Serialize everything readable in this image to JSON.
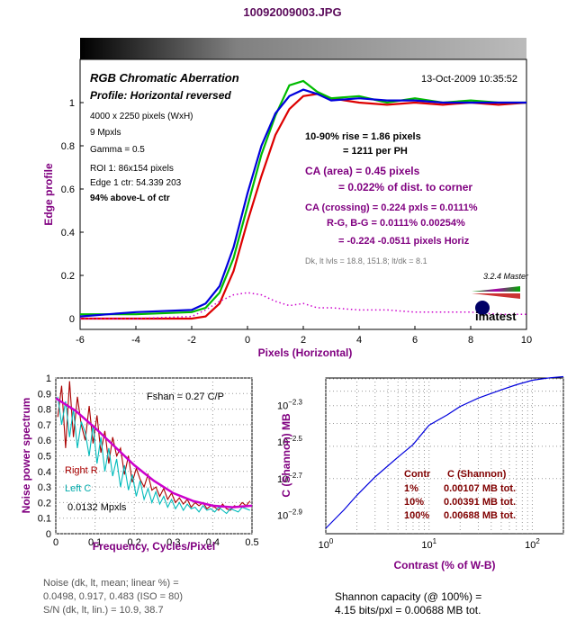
{
  "file_title": "10092009003.JPG",
  "colors": {
    "red": "#dd0000",
    "green": "#00bb00",
    "blue": "#0000dd",
    "magenta": "#cc00cc",
    "purple_text": "#800080",
    "dark_red_text": "#800000",
    "cyan": "#00bbbb",
    "dark_red_noise": "#aa0000",
    "fit": "#cc00cc"
  },
  "main": {
    "title": "RGB Chromatic Aberration",
    "subtitle": "Profile: Horizontal reversed",
    "timestamp": "13-Oct-2009 10:35:52",
    "info": {
      "pixels": "4000 x 2250 pixels (WxH)",
      "mpxls": "9 Mpxls",
      "gamma": "Gamma = 0.5",
      "roi": "ROI 1: 86x154 pixels",
      "edge_ctr": "Edge 1 ctr: 54.339  203",
      "above": "94% above-L of ctr"
    },
    "stats": {
      "rise": "10-90% rise = 1.86 pixels",
      "per_ph": "= 1211 per PH",
      "ca_area": "CA (area) = 0.45 pixels",
      "ca_area_pct": "= 0.022% of dist. to corner",
      "ca_crossing": "CA (crossing) = 0.224 pxls = 0.0111%",
      "rg_bg": "R-G, B-G = 0.0111%  0.00254%",
      "horiz": "= -0.224  -0.0511 pixels Horiz",
      "dk": "Dk, lt lvls = 18.8, 151.8;  lt/dk = 8.1"
    },
    "logo": {
      "version": "3.2.4  Master",
      "brand": "imatest"
    }
  },
  "noise": {
    "fshan": "Fshan = 0.27 C/P",
    "right_label": "Right R",
    "left_label": "Left  C",
    "mpxls": "0.0132 Mpxls",
    "footer": [
      "Noise (dk, lt, mean; linear %) =",
      "0.0498,  0.917,  0.483  (ISO =  80)",
      "S/N (dk, lt, lin.) = 10.9,  38.7"
    ]
  },
  "shannon": {
    "table_header": [
      "Contr",
      "C (Shannon)"
    ],
    "table_rows": [
      [
        "1%",
        "0.00107 MB tot."
      ],
      [
        "10%",
        "0.00391 MB tot."
      ],
      [
        "100%",
        "0.00688 MB tot."
      ]
    ],
    "footer": [
      "Shannon capacity (@ 100%) =",
      "4.15 bits/pxl = 0.00688 MB tot."
    ]
  },
  "chart_data": [
    {
      "type": "line",
      "xlabel": "Pixels (Horizontal)",
      "ylabel": "Edge profile",
      "xlim": [
        -6,
        10
      ],
      "ylim": [
        -0.05,
        1.2
      ],
      "xticks": [
        -6,
        -4,
        -2,
        0,
        2,
        4,
        6,
        8,
        10
      ],
      "yticks": [
        0,
        0.2,
        0.4,
        0.6,
        0.8,
        1
      ],
      "ytick_labels": [
        "0",
        "0.2",
        "0.4",
        "0.6",
        "0.8",
        "1"
      ],
      "grid": false,
      "series": [
        {
          "key": "red",
          "x": [
            -6,
            -4,
            -2,
            -1.5,
            -1,
            -0.5,
            0,
            0.5,
            1,
            1.5,
            2,
            2.5,
            3,
            4,
            5,
            6,
            7,
            8,
            9,
            10
          ],
          "values": [
            0,
            0,
            0,
            0.01,
            0.07,
            0.22,
            0.45,
            0.66,
            0.85,
            0.97,
            1.03,
            1.04,
            1.02,
            1.0,
            0.99,
            1.0,
            0.99,
            1.0,
            0.99,
            1.0
          ]
        },
        {
          "key": "green",
          "x": [
            -6,
            -4,
            -2,
            -1.5,
            -1,
            -0.5,
            0,
            0.5,
            1,
            1.5,
            2,
            2.5,
            3,
            4,
            5,
            6,
            7,
            8,
            9,
            10
          ],
          "values": [
            0.02,
            0.02,
            0.03,
            0.05,
            0.12,
            0.28,
            0.52,
            0.76,
            0.94,
            1.08,
            1.1,
            1.05,
            1.02,
            1.03,
            1.0,
            1.02,
            1.0,
            1.01,
            1.0,
            1.0
          ]
        },
        {
          "key": "blue",
          "x": [
            -6,
            -4,
            -2,
            -1.5,
            -1,
            -0.5,
            0,
            0.5,
            1,
            1.5,
            2,
            2.5,
            3,
            4,
            5,
            6,
            7,
            8,
            9,
            10
          ],
          "values": [
            0.01,
            0.03,
            0.04,
            0.07,
            0.15,
            0.33,
            0.58,
            0.8,
            0.95,
            1.03,
            1.06,
            1.04,
            1.01,
            1.02,
            1.01,
            1.01,
            1.0,
            1.0,
            1.0,
            1.0
          ]
        },
        {
          "key": "magenta",
          "dotted": true,
          "x": [
            -6,
            -4,
            -2,
            -1.5,
            -1,
            -0.5,
            0,
            0.5,
            1,
            1.5,
            2,
            2.5,
            3,
            4,
            5,
            6,
            7,
            8,
            9,
            10
          ],
          "values": [
            0.0,
            0.0,
            0.01,
            0.04,
            0.08,
            0.11,
            0.12,
            0.11,
            0.08,
            0.06,
            0.07,
            0.05,
            0.05,
            0.04,
            0.04,
            0.03,
            0.03,
            0.03,
            0.02,
            0.02
          ]
        }
      ]
    },
    {
      "type": "line",
      "xlabel": "Frequency, Cycles/Pixel",
      "ylabel": "Noise power spectrum",
      "xlim": [
        0,
        0.5
      ],
      "ylim": [
        0,
        1
      ],
      "xticks": [
        0,
        0.1,
        0.2,
        0.3,
        0.4,
        0.5
      ],
      "yticks": [
        0,
        0.1,
        0.2,
        0.3,
        0.4,
        0.5,
        0.6,
        0.7,
        0.8,
        0.9,
        1
      ],
      "grid": true,
      "series": [
        {
          "key": "dark_red_noise",
          "x": [
            0.005,
            0.015,
            0.025,
            0.035,
            0.045,
            0.055,
            0.065,
            0.075,
            0.085,
            0.095,
            0.105,
            0.115,
            0.125,
            0.135,
            0.145,
            0.155,
            0.165,
            0.175,
            0.185,
            0.195,
            0.205,
            0.215,
            0.225,
            0.235,
            0.245,
            0.255,
            0.265,
            0.275,
            0.285,
            0.295,
            0.305,
            0.315,
            0.325,
            0.335,
            0.345,
            0.355,
            0.365,
            0.375,
            0.385,
            0.395,
            0.405,
            0.415,
            0.425,
            0.435,
            0.445,
            0.455,
            0.465,
            0.475,
            0.485,
            0.495
          ],
          "values": [
            0.75,
            0.95,
            0.55,
            0.98,
            0.62,
            0.88,
            0.7,
            0.6,
            0.82,
            0.58,
            0.76,
            0.52,
            0.66,
            0.45,
            0.62,
            0.5,
            0.55,
            0.38,
            0.5,
            0.33,
            0.42,
            0.35,
            0.3,
            0.38,
            0.28,
            0.3,
            0.24,
            0.29,
            0.22,
            0.26,
            0.2,
            0.23,
            0.19,
            0.22,
            0.17,
            0.2,
            0.18,
            0.2,
            0.16,
            0.18,
            0.17,
            0.15,
            0.19,
            0.16,
            0.15,
            0.18,
            0.17,
            0.2,
            0.18,
            0.21
          ]
        },
        {
          "key": "cyan",
          "x": [
            0.005,
            0.015,
            0.025,
            0.035,
            0.045,
            0.055,
            0.065,
            0.075,
            0.085,
            0.095,
            0.105,
            0.115,
            0.125,
            0.135,
            0.145,
            0.155,
            0.165,
            0.175,
            0.185,
            0.195,
            0.205,
            0.215,
            0.225,
            0.235,
            0.245,
            0.255,
            0.265,
            0.275,
            0.285,
            0.295,
            0.305,
            0.315,
            0.325,
            0.335,
            0.345,
            0.355,
            0.365,
            0.375,
            0.385,
            0.395,
            0.405,
            0.415,
            0.425,
            0.435,
            0.445,
            0.455,
            0.465,
            0.475,
            0.485,
            0.495
          ],
          "values": [
            0.88,
            0.7,
            0.85,
            0.62,
            0.8,
            0.55,
            0.72,
            0.65,
            0.5,
            0.7,
            0.45,
            0.62,
            0.4,
            0.55,
            0.37,
            0.48,
            0.3,
            0.44,
            0.28,
            0.38,
            0.24,
            0.34,
            0.22,
            0.29,
            0.2,
            0.27,
            0.19,
            0.24,
            0.17,
            0.22,
            0.16,
            0.2,
            0.15,
            0.19,
            0.16,
            0.17,
            0.14,
            0.18,
            0.15,
            0.16,
            0.14,
            0.17,
            0.15,
            0.13,
            0.16,
            0.15,
            0.14,
            0.17,
            0.16,
            0.15
          ]
        },
        {
          "key": "fit",
          "x": [
            0,
            0.05,
            0.1,
            0.15,
            0.2,
            0.25,
            0.3,
            0.35,
            0.4,
            0.45,
            0.5
          ],
          "values": [
            0.87,
            0.79,
            0.68,
            0.56,
            0.44,
            0.34,
            0.26,
            0.21,
            0.18,
            0.17,
            0.18
          ]
        }
      ]
    },
    {
      "type": "line",
      "xlabel": "Contrast (% of W-B)",
      "ylabel": "C (Shannon) MB",
      "xscale": "log",
      "yscale": "log",
      "xlim": [
        1,
        200
      ],
      "ylim_log10": [
        -3.0,
        -2.15
      ],
      "xticks": [
        1,
        10,
        100
      ],
      "yticks_log10": [
        -2.9,
        -2.7,
        -2.5,
        -2.3
      ],
      "grid": true,
      "series": [
        {
          "key": "blue",
          "x": [
            1,
            1.5,
            2,
            3,
            5,
            7,
            10,
            15,
            20,
            30,
            50,
            70,
            100,
            150,
            200
          ],
          "values": [
            0.00107,
            0.00135,
            0.00162,
            0.00204,
            0.00262,
            0.00307,
            0.00391,
            0.00445,
            0.00495,
            0.0055,
            0.0061,
            0.0065,
            0.00688,
            0.0071,
            0.0072
          ]
        }
      ]
    }
  ]
}
